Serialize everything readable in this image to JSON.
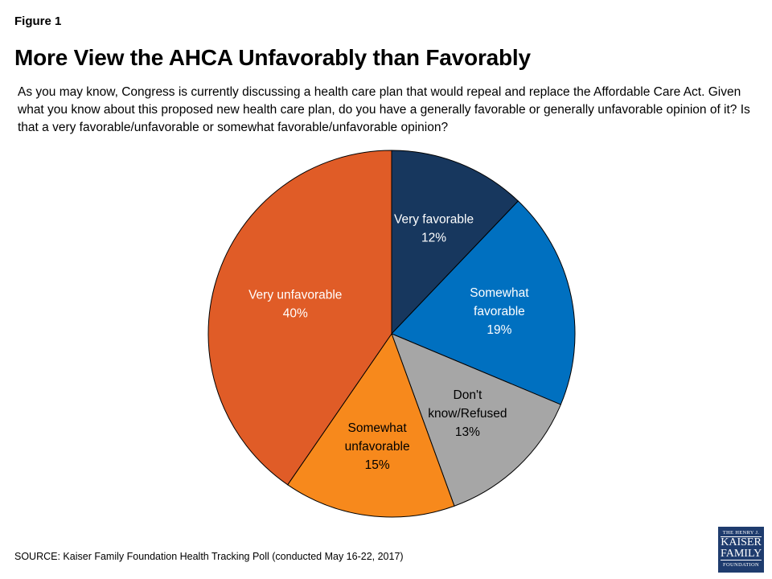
{
  "figure_label": "Figure 1",
  "title": "More View the AHCA Unfavorably than Favorably",
  "question": "As you may know, Congress is currently discussing a health care plan that would repeal and replace the Affordable Care Act. Given what you know about this proposed new health care plan, do you have a generally favorable or generally unfavorable opinion of it?  Is that a very favorable/unfavorable or somewhat favorable/unfavorable opinion?",
  "source": "SOURCE: Kaiser Family Foundation Health Tracking Poll (conducted May 16-22, 2017)",
  "logo": {
    "line1": "THE HENRY J.",
    "line2": "KAISER FAMILY",
    "line3": "FOUNDATION"
  },
  "chart_data": {
    "type": "pie",
    "start": "top, clockwise",
    "slices": [
      {
        "label": [
          "Very favorable"
        ],
        "value": 12,
        "value_label": "12%",
        "color": "#17375e",
        "text_color": "#ffffff"
      },
      {
        "label": [
          "Somewhat",
          "favorable"
        ],
        "value": 19,
        "value_label": "19%",
        "color": "#0070c0",
        "text_color": "#ffffff"
      },
      {
        "label": [
          "Don't",
          "know/Refused"
        ],
        "value": 13,
        "value_label": "13%",
        "color": "#a6a6a6",
        "text_color": "#000000"
      },
      {
        "label": [
          "Somewhat",
          "unfavorable"
        ],
        "value": 15,
        "value_label": "15%",
        "color": "#f7891c",
        "text_color": "#000000"
      },
      {
        "label": [
          "Very unfavorable"
        ],
        "value": 40,
        "value_label": "40%",
        "color": "#e05c27",
        "text_color": "#ffffff"
      }
    ]
  }
}
